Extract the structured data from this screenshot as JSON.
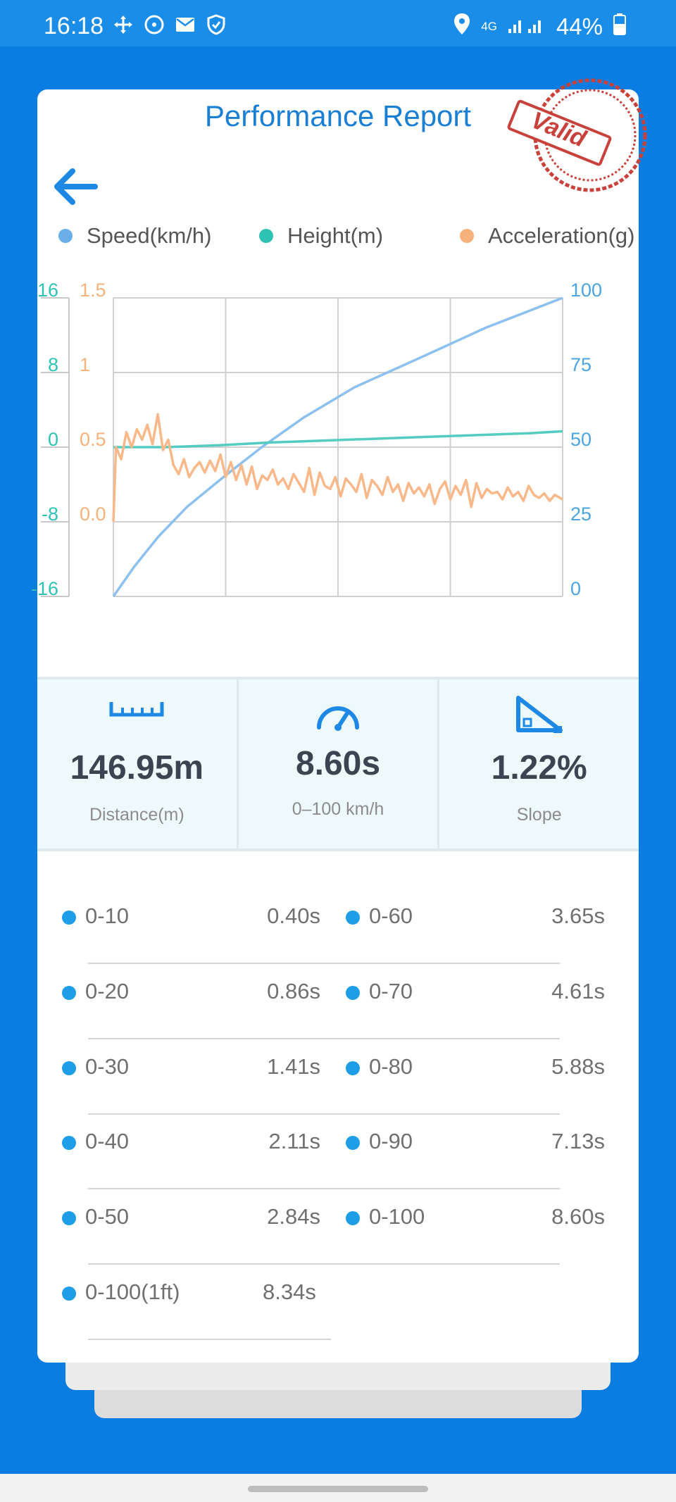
{
  "status_bar": {
    "time": "16:18",
    "network": "4G",
    "battery": "44%"
  },
  "report": {
    "title": "Performance Report",
    "stamp_text": "Valid"
  },
  "legend": [
    {
      "label": "Speed(km/h)",
      "color": "#6aaee8"
    },
    {
      "label": "Height(m)",
      "color": "#2ec2b4"
    },
    {
      "label": "Acceleration(g)",
      "color": "#f6b27c"
    }
  ],
  "chart_data": {
    "type": "line",
    "x_range": [
      0,
      8.6
    ],
    "axes": {
      "height_ticks": [
        "16",
        "8",
        "0",
        "-8",
        "-16"
      ],
      "accel_ticks": [
        "1.5",
        "1",
        "0.5",
        "0.0"
      ],
      "speed_ticks": [
        "100",
        "75",
        "50",
        "25",
        "0"
      ],
      "height_range": [
        -16,
        16
      ],
      "accel_range": [
        -0.5,
        1.5
      ],
      "speed_range": [
        0,
        100
      ]
    },
    "grid": true,
    "series": [
      {
        "name": "Speed(km/h)",
        "color": "#8cc0ee",
        "axis": "speed",
        "x": [
          0,
          0.4,
          0.86,
          1.41,
          2.11,
          2.84,
          3.65,
          4.61,
          5.88,
          7.13,
          8.6
        ],
        "y": [
          0,
          10,
          20,
          30,
          40,
          50,
          60,
          70,
          80,
          90,
          100
        ]
      },
      {
        "name": "Height(m)",
        "color": "#55ccc2",
        "axis": "height",
        "x": [
          0,
          1,
          2,
          3,
          4,
          5,
          6,
          7,
          8,
          8.6
        ],
        "y": [
          0,
          0,
          0.2,
          0.5,
          0.7,
          0.9,
          1.1,
          1.3,
          1.5,
          1.7
        ]
      },
      {
        "name": "Acceleration(g)",
        "color": "#f8b889",
        "axis": "accel",
        "x": [
          0,
          0.05,
          0.15,
          0.25,
          0.35,
          0.45,
          0.55,
          0.65,
          0.75,
          0.85,
          0.95,
          1.05,
          1.15,
          1.25,
          1.35,
          1.45,
          1.55,
          1.65,
          1.75,
          1.85,
          1.95,
          2.05,
          2.15,
          2.25,
          2.35,
          2.45,
          2.55,
          2.65,
          2.75,
          2.85,
          2.95,
          3.05,
          3.15,
          3.25,
          3.35,
          3.45,
          3.55,
          3.65,
          3.75,
          3.85,
          3.95,
          4.05,
          4.15,
          4.25,
          4.35,
          4.45,
          4.55,
          4.65,
          4.75,
          4.85,
          4.95,
          5.05,
          5.15,
          5.25,
          5.35,
          5.45,
          5.55,
          5.65,
          5.75,
          5.85,
          5.95,
          6.05,
          6.15,
          6.25,
          6.35,
          6.45,
          6.55,
          6.65,
          6.75,
          6.85,
          6.95,
          7.05,
          7.15,
          7.25,
          7.35,
          7.45,
          7.55,
          7.65,
          7.75,
          7.85,
          7.95,
          8.05,
          8.15,
          8.25,
          8.35,
          8.45,
          8.6
        ],
        "y": [
          0.0,
          0.5,
          0.42,
          0.6,
          0.5,
          0.62,
          0.55,
          0.65,
          0.52,
          0.72,
          0.48,
          0.55,
          0.38,
          0.32,
          0.42,
          0.3,
          0.36,
          0.4,
          0.33,
          0.41,
          0.34,
          0.45,
          0.3,
          0.4,
          0.28,
          0.38,
          0.25,
          0.37,
          0.22,
          0.31,
          0.28,
          0.35,
          0.25,
          0.29,
          0.22,
          0.32,
          0.26,
          0.2,
          0.36,
          0.18,
          0.33,
          0.24,
          0.22,
          0.3,
          0.17,
          0.29,
          0.25,
          0.2,
          0.32,
          0.16,
          0.28,
          0.24,
          0.18,
          0.3,
          0.2,
          0.25,
          0.14,
          0.26,
          0.19,
          0.23,
          0.17,
          0.25,
          0.12,
          0.22,
          0.27,
          0.15,
          0.24,
          0.18,
          0.28,
          0.1,
          0.26,
          0.16,
          0.22,
          0.19,
          0.2,
          0.15,
          0.23,
          0.17,
          0.2,
          0.14,
          0.24,
          0.18,
          0.16,
          0.19,
          0.14,
          0.18,
          0.15
        ]
      }
    ]
  },
  "stats": [
    {
      "icon": "ruler-icon",
      "value": "146.95m",
      "label": "Distance(m)"
    },
    {
      "icon": "speedometer-icon",
      "value": "8.60s",
      "label": "0–100 km/h"
    },
    {
      "icon": "slope-icon",
      "value": "1.22%",
      "label": "Slope"
    }
  ],
  "splits_left": [
    {
      "label": "0-10",
      "time": "0.40s"
    },
    {
      "label": "0-20",
      "time": "0.86s"
    },
    {
      "label": "0-30",
      "time": "1.41s"
    },
    {
      "label": "0-40",
      "time": "2.11s"
    },
    {
      "label": "0-50",
      "time": "2.84s"
    },
    {
      "label": "0-100(1ft)",
      "time": "8.34s"
    }
  ],
  "splits_right": [
    {
      "label": "0-60",
      "time": "3.65s"
    },
    {
      "label": "0-70",
      "time": "4.61s"
    },
    {
      "label": "0-80",
      "time": "5.88s"
    },
    {
      "label": "0-90",
      "time": "7.13s"
    },
    {
      "label": "0-100",
      "time": "8.60s"
    }
  ]
}
